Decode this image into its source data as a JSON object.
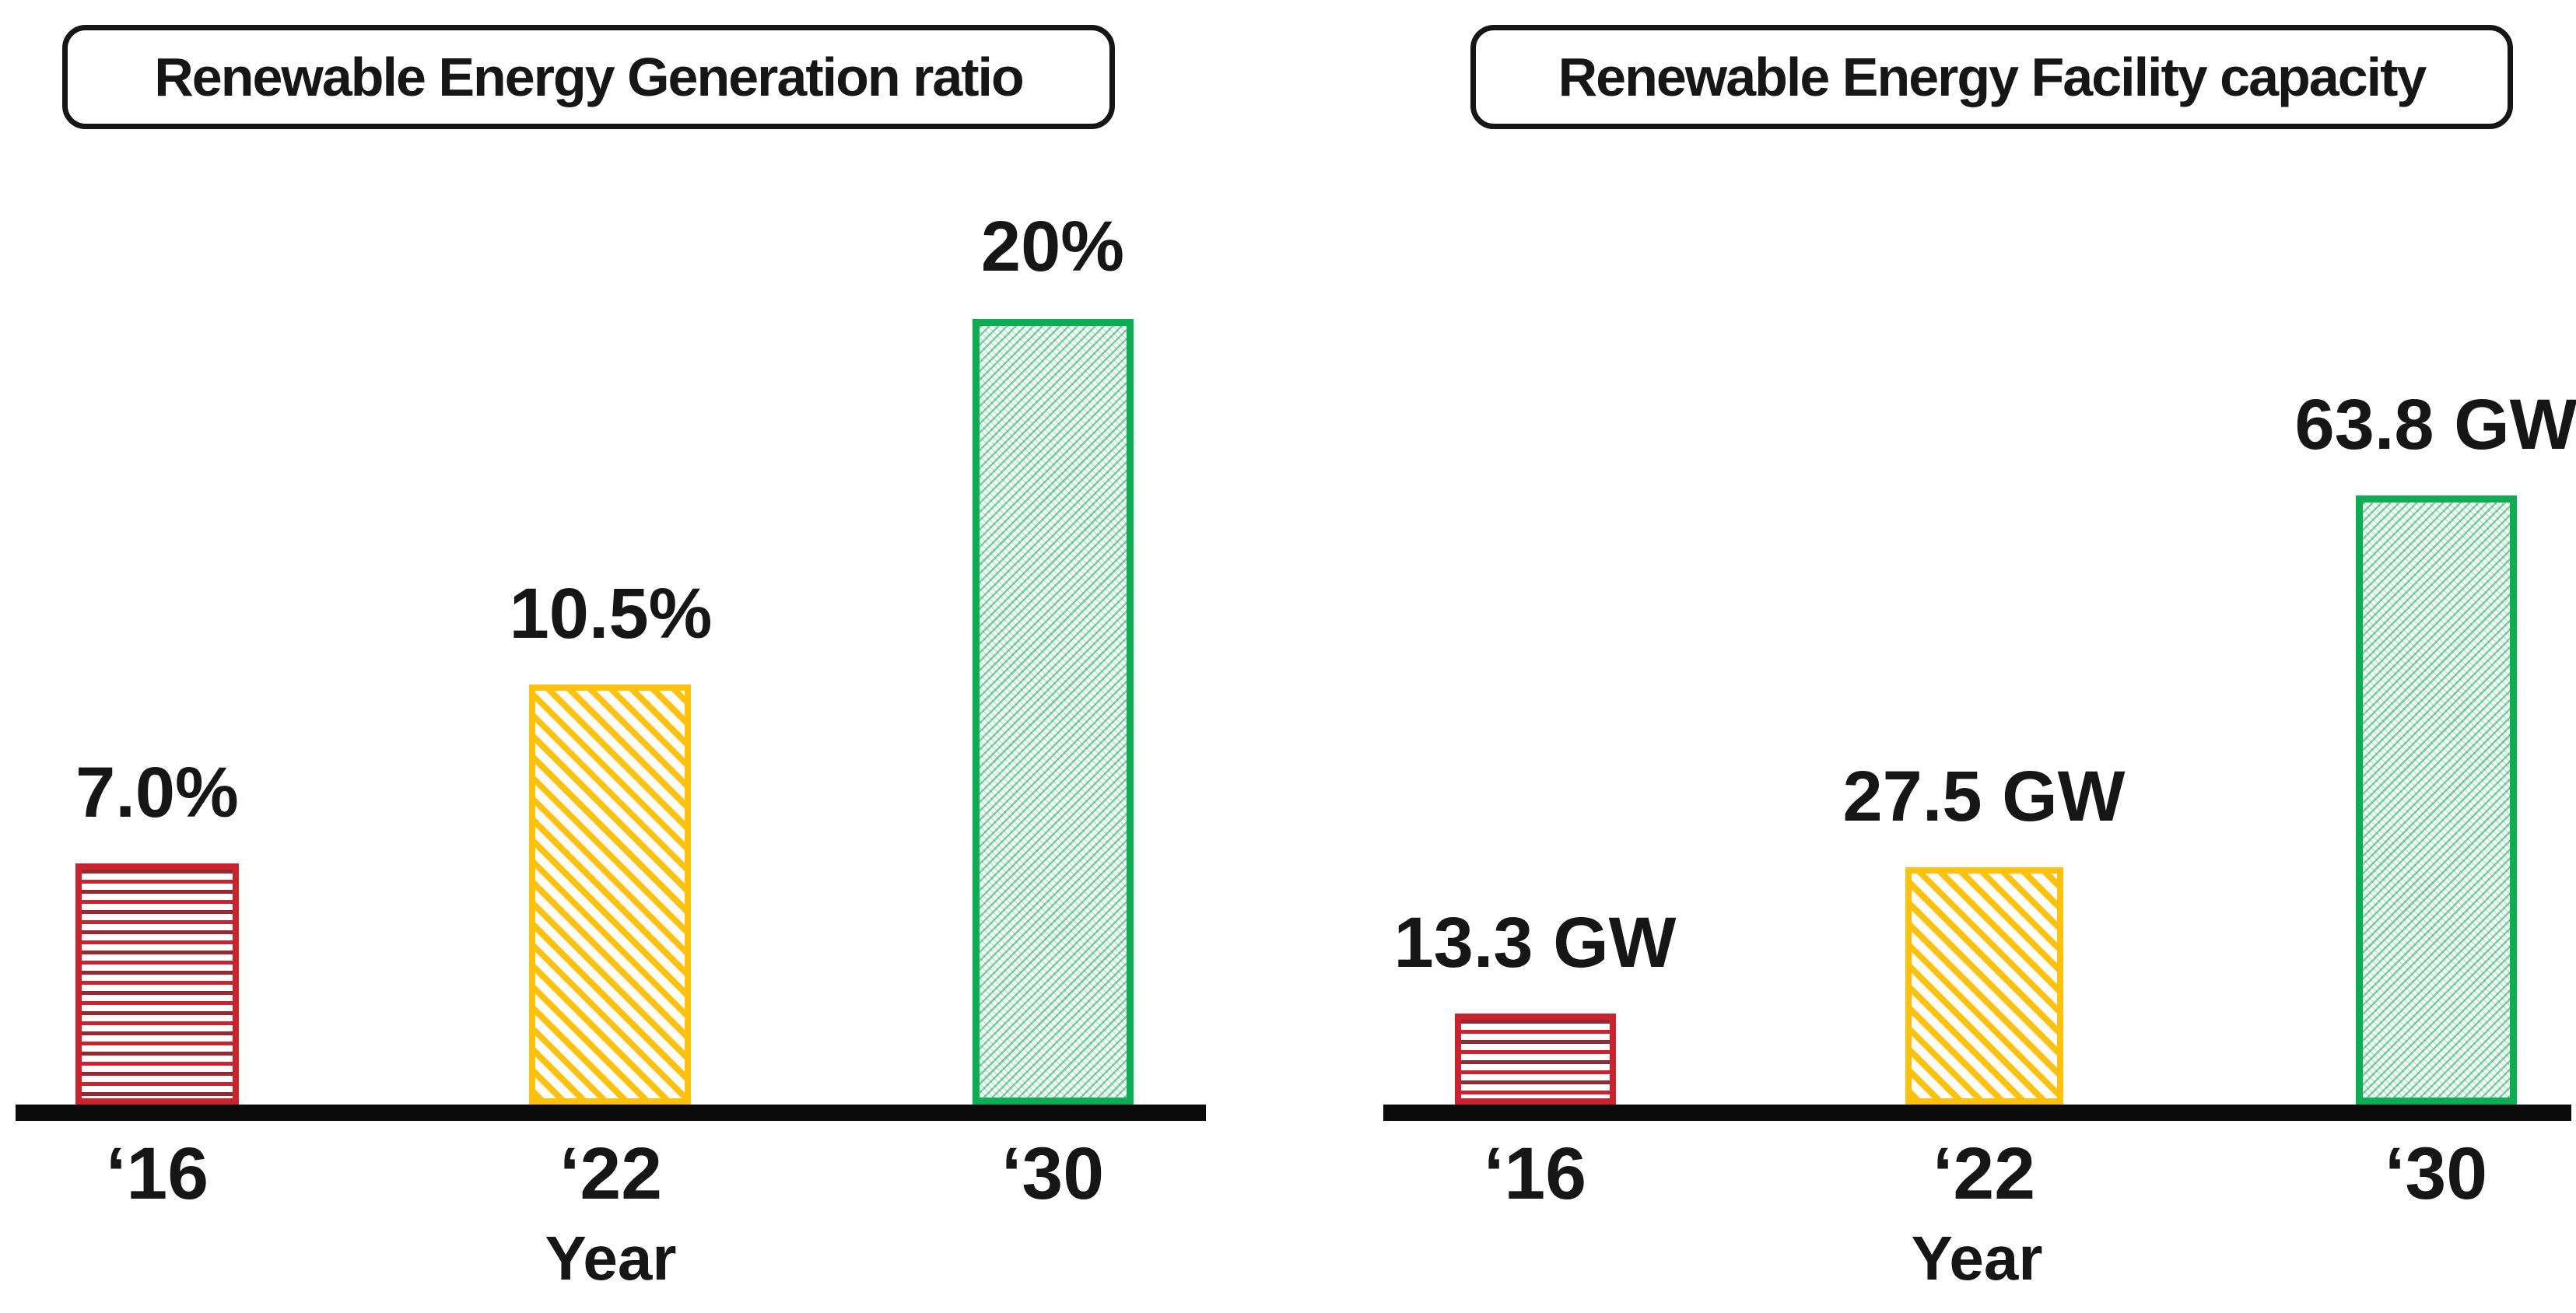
{
  "colors": {
    "background": "#ffffff",
    "text": "#161616",
    "axis": "#0b0b0b",
    "red": "#C9232D",
    "yellow": "#FEC10D",
    "green": "#0CAD53"
  },
  "chart_data": [
    {
      "type": "bar",
      "title": "Renewable Energy Generation ratio",
      "xlabel": "Year",
      "ylabel": "",
      "categories": [
        "‘16",
        "‘22",
        "‘30"
      ],
      "values": [
        7.0,
        10.5,
        20
      ],
      "value_labels": [
        "7.0%",
        "10.5%",
        "20%"
      ],
      "unit": "%",
      "bar_colors": [
        "#C9232D",
        "#FEC10D",
        "#0CAD53"
      ],
      "hatches": [
        "horizontal-lines",
        "diagonal-down-lines",
        "fine-diagonal-up-crosshatch"
      ],
      "grid": false,
      "legend_position": "none"
    },
    {
      "type": "bar",
      "title": "Renewable Energy Facility capacity",
      "xlabel": "Year",
      "ylabel": "",
      "categories": [
        "‘16",
        "‘22",
        "‘30"
      ],
      "values": [
        13.3,
        27.5,
        63.8
      ],
      "value_labels": [
        "13.3 GW",
        "27.5 GW",
        "63.8 GW"
      ],
      "unit": "GW",
      "bar_colors": [
        "#C9232D",
        "#FEC10D",
        "#0CAD53"
      ],
      "hatches": [
        "horizontal-lines",
        "diagonal-down-lines",
        "fine-diagonal-up-crosshatch"
      ],
      "grid": false,
      "legend_position": "none"
    }
  ]
}
